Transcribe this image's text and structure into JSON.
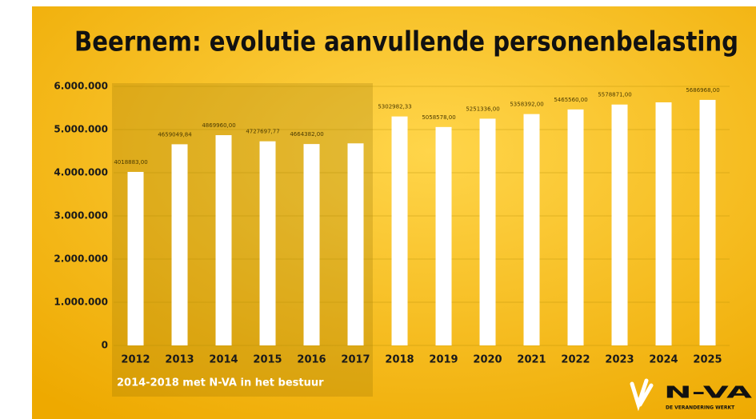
{
  "chart_data": {
    "type": "bar",
    "title": "Beernem: evolutie aanvullende personenbelasting",
    "categories": [
      "2012",
      "2013",
      "2014",
      "2015",
      "2016",
      "2017",
      "2018",
      "2019",
      "2020",
      "2021",
      "2022",
      "2023",
      "2024",
      "2025"
    ],
    "values": [
      4018883,
      4659049.84,
      4869960,
      4727697.77,
      4664382,
      4680000,
      5302982.33,
      5058578,
      5251336,
      5358392,
      5465560,
      5578871,
      5630000,
      5686968
    ],
    "value_labels": [
      "4018883,00",
      "4659049,84",
      "4869960,00",
      "4727697,77",
      "4664382,00",
      null,
      "5302982,33",
      "5058578,00",
      "5251336,00",
      "5358392,00",
      "5465560,00",
      "5578871,00",
      null,
      "5686968,00"
    ],
    "color": "#ffffff",
    "ylim": [
      0,
      6000000
    ],
    "yticks": [
      0,
      {
        "value": 1000000,
        "label": "1.000.000"
      },
      {
        "value": 2000000,
        "label": "2.000.000"
      },
      {
        "value": 3000000,
        "label": "3.000.000"
      },
      {
        "value": 4000000,
        "label": "4.000.000"
      },
      {
        "value": 5000000,
        "label": "5.000.000"
      },
      {
        "value": 6000000,
        "label": "6.000.000"
      }
    ],
    "grid": true,
    "annotation": "2014-2018 met N-VA in het bestuur",
    "logo": {
      "text": "N-VA",
      "tagline": "DE VERANDERING WERKT"
    }
  }
}
